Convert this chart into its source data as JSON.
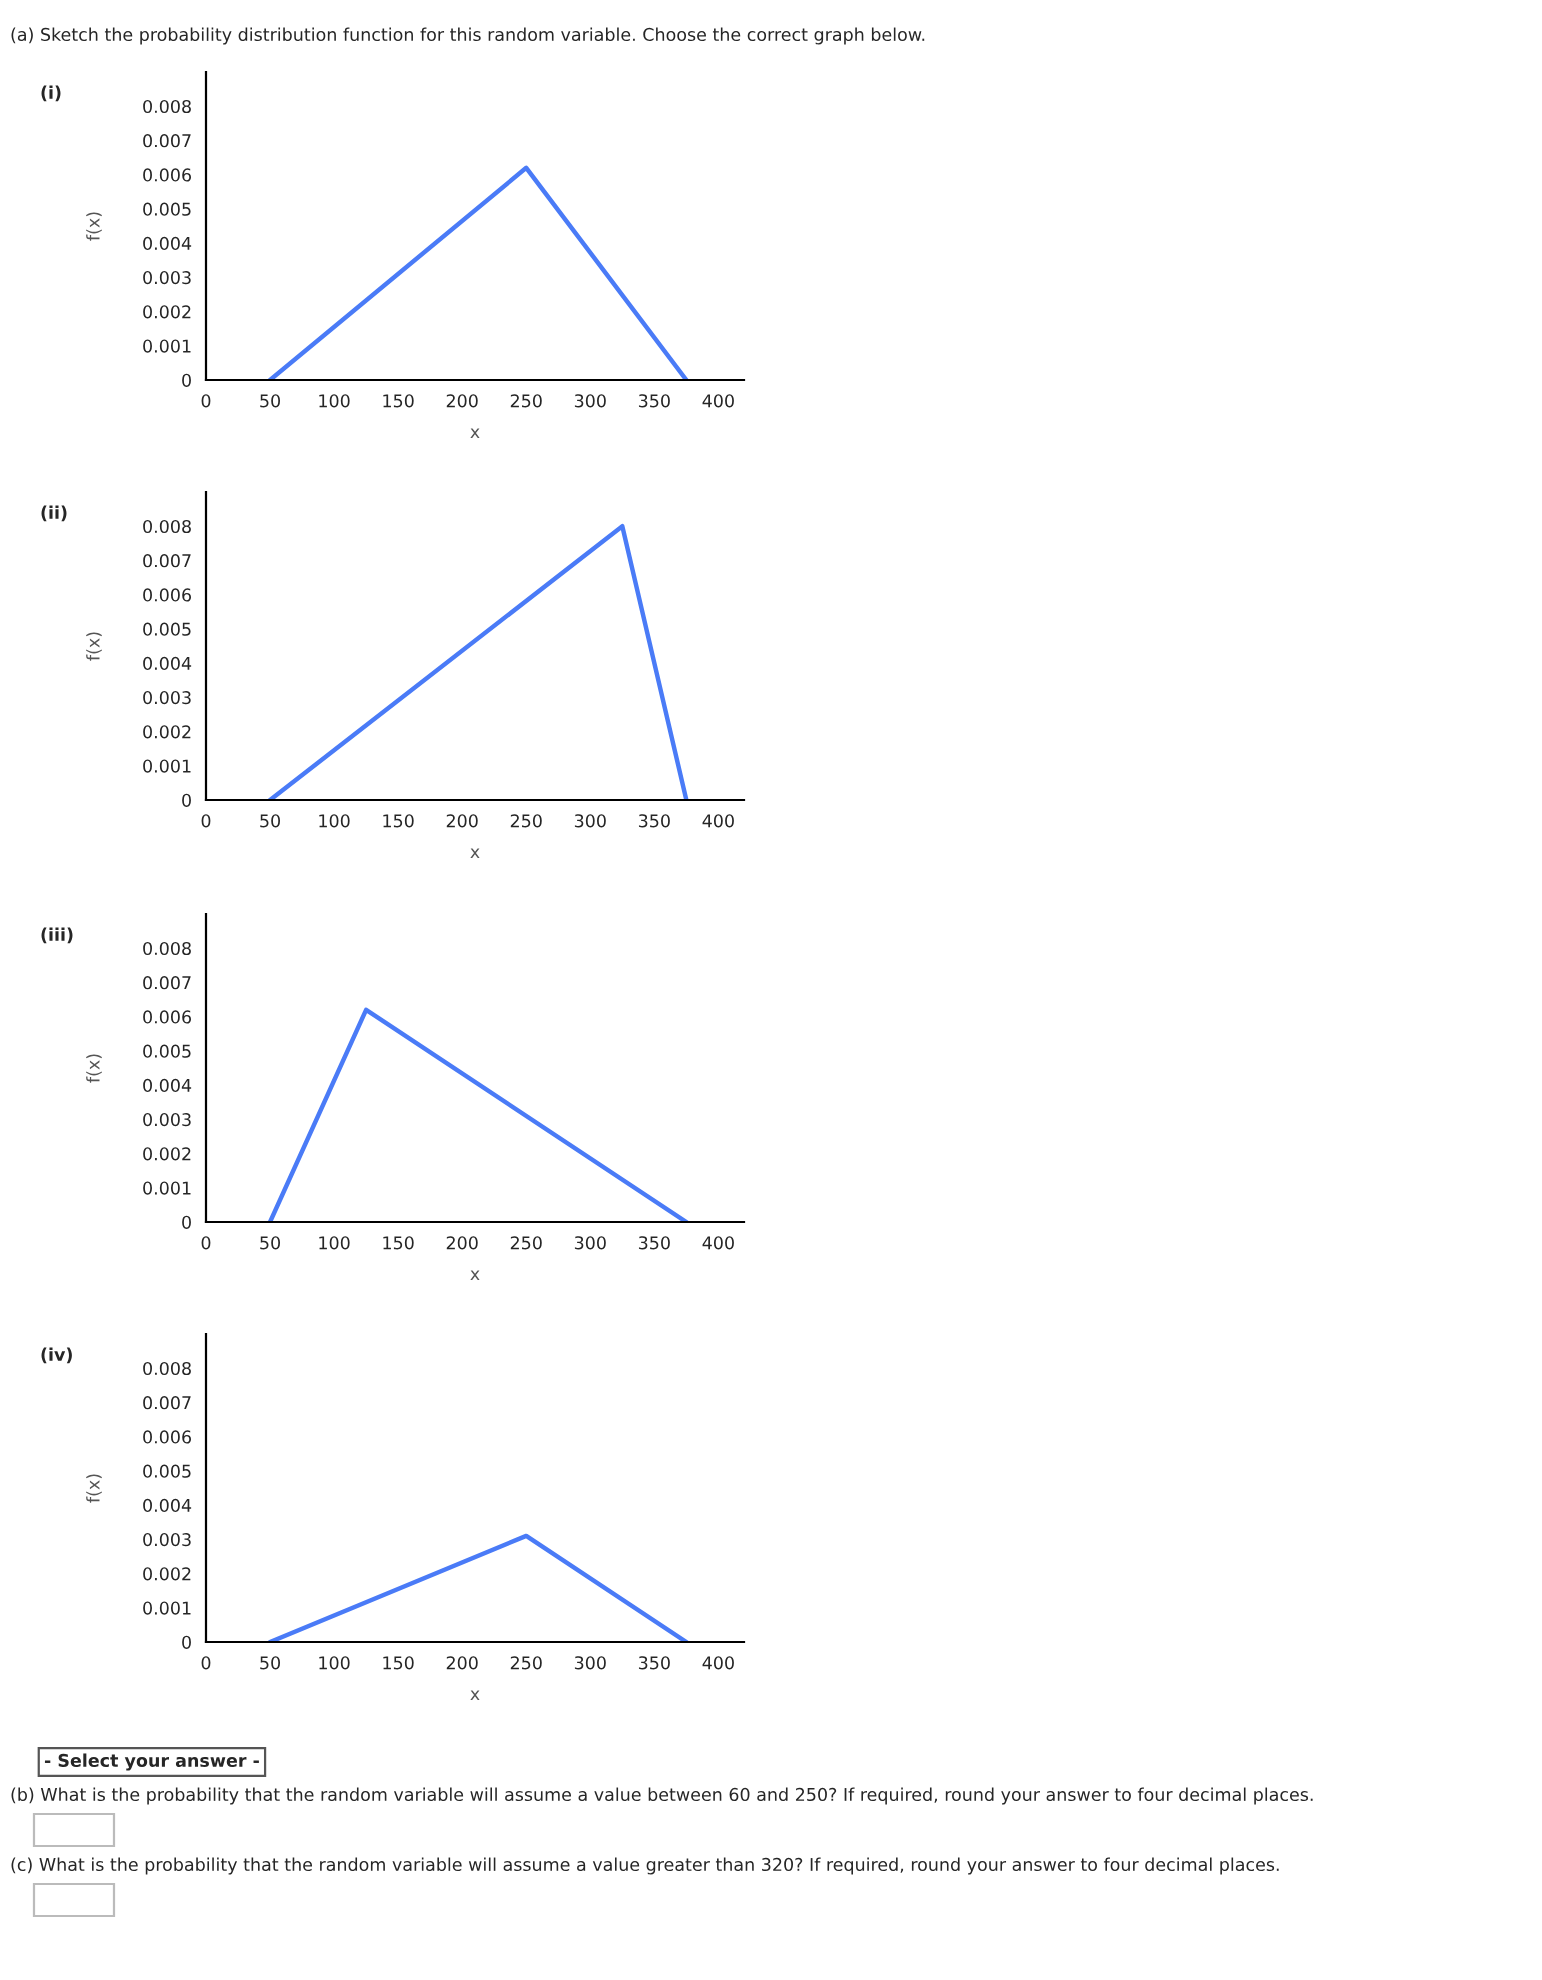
{
  "chart_data": [
    {
      "type": "line",
      "title": "(i)",
      "xlabel": "x",
      "ylabel": "f(x)",
      "x": [
        50,
        250,
        375
      ],
      "values": [
        0,
        0.0062,
        0
      ],
      "color": "#4a7bf7",
      "xlim": [
        0,
        420
      ],
      "xticks": [
        0,
        50,
        100,
        150,
        200,
        250,
        300,
        350,
        400
      ],
      "ylim": [
        0,
        0.009
      ],
      "yticks": [
        0,
        0.001,
        0.002,
        0.003,
        0.004,
        0.005,
        0.006,
        0.007,
        0.008
      ],
      "grid": false,
      "annotations": [
        "(a) Sketch the probability distribution function for this random variable. Choose the correct graph below."
      ]
    },
    {
      "type": "line",
      "title": "(ii)",
      "xlabel": "x",
      "ylabel": "f(x)",
      "x": [
        50,
        325,
        375
      ],
      "values": [
        0,
        0.008,
        0
      ],
      "color": "#4a7bf7",
      "xlim": [
        0,
        420
      ],
      "xticks": [
        0,
        50,
        100,
        150,
        200,
        250,
        300,
        350,
        400
      ],
      "ylim": [
        0,
        0.009
      ],
      "yticks": [
        0,
        0.001,
        0.002,
        0.003,
        0.004,
        0.005,
        0.006,
        0.007,
        0.008
      ],
      "grid": false
    },
    {
      "type": "line",
      "title": "(iii)",
      "xlabel": "x",
      "ylabel": "f(x)",
      "x": [
        50,
        125,
        375
      ],
      "values": [
        0,
        0.0062,
        0
      ],
      "color": "#4a7bf7",
      "xlim": [
        0,
        420
      ],
      "xticks": [
        0,
        50,
        100,
        150,
        200,
        250,
        300,
        350,
        400
      ],
      "ylim": [
        0,
        0.009
      ],
      "yticks": [
        0,
        0.001,
        0.002,
        0.003,
        0.004,
        0.005,
        0.006,
        0.007,
        0.008
      ],
      "grid": false
    },
    {
      "type": "line",
      "title": "(iv)",
      "xlabel": "x",
      "ylabel": "f(x)",
      "x": [
        50,
        250,
        375
      ],
      "values": [
        0,
        0.0031,
        0
      ],
      "color": "#4a7bf7",
      "xlim": [
        0,
        420
      ],
      "xticks": [
        0,
        50,
        100,
        150,
        200,
        250,
        300,
        350,
        400
      ],
      "ylim": [
        0,
        0.009
      ],
      "yticks": [
        0,
        0.001,
        0.002,
        0.003,
        0.004,
        0.005,
        0.006,
        0.007,
        0.008
      ],
      "grid": false,
      "annotations": [
        "- Select your answer -",
        "(b) What is the probability that the random variable will assume a value between 60 and 250? If required, round your answer to four decimal places.",
        "(c) What is the probability that the random variable will assume a value greater than 320? If required, round your answer to four decimal places."
      ]
    }
  ]
}
